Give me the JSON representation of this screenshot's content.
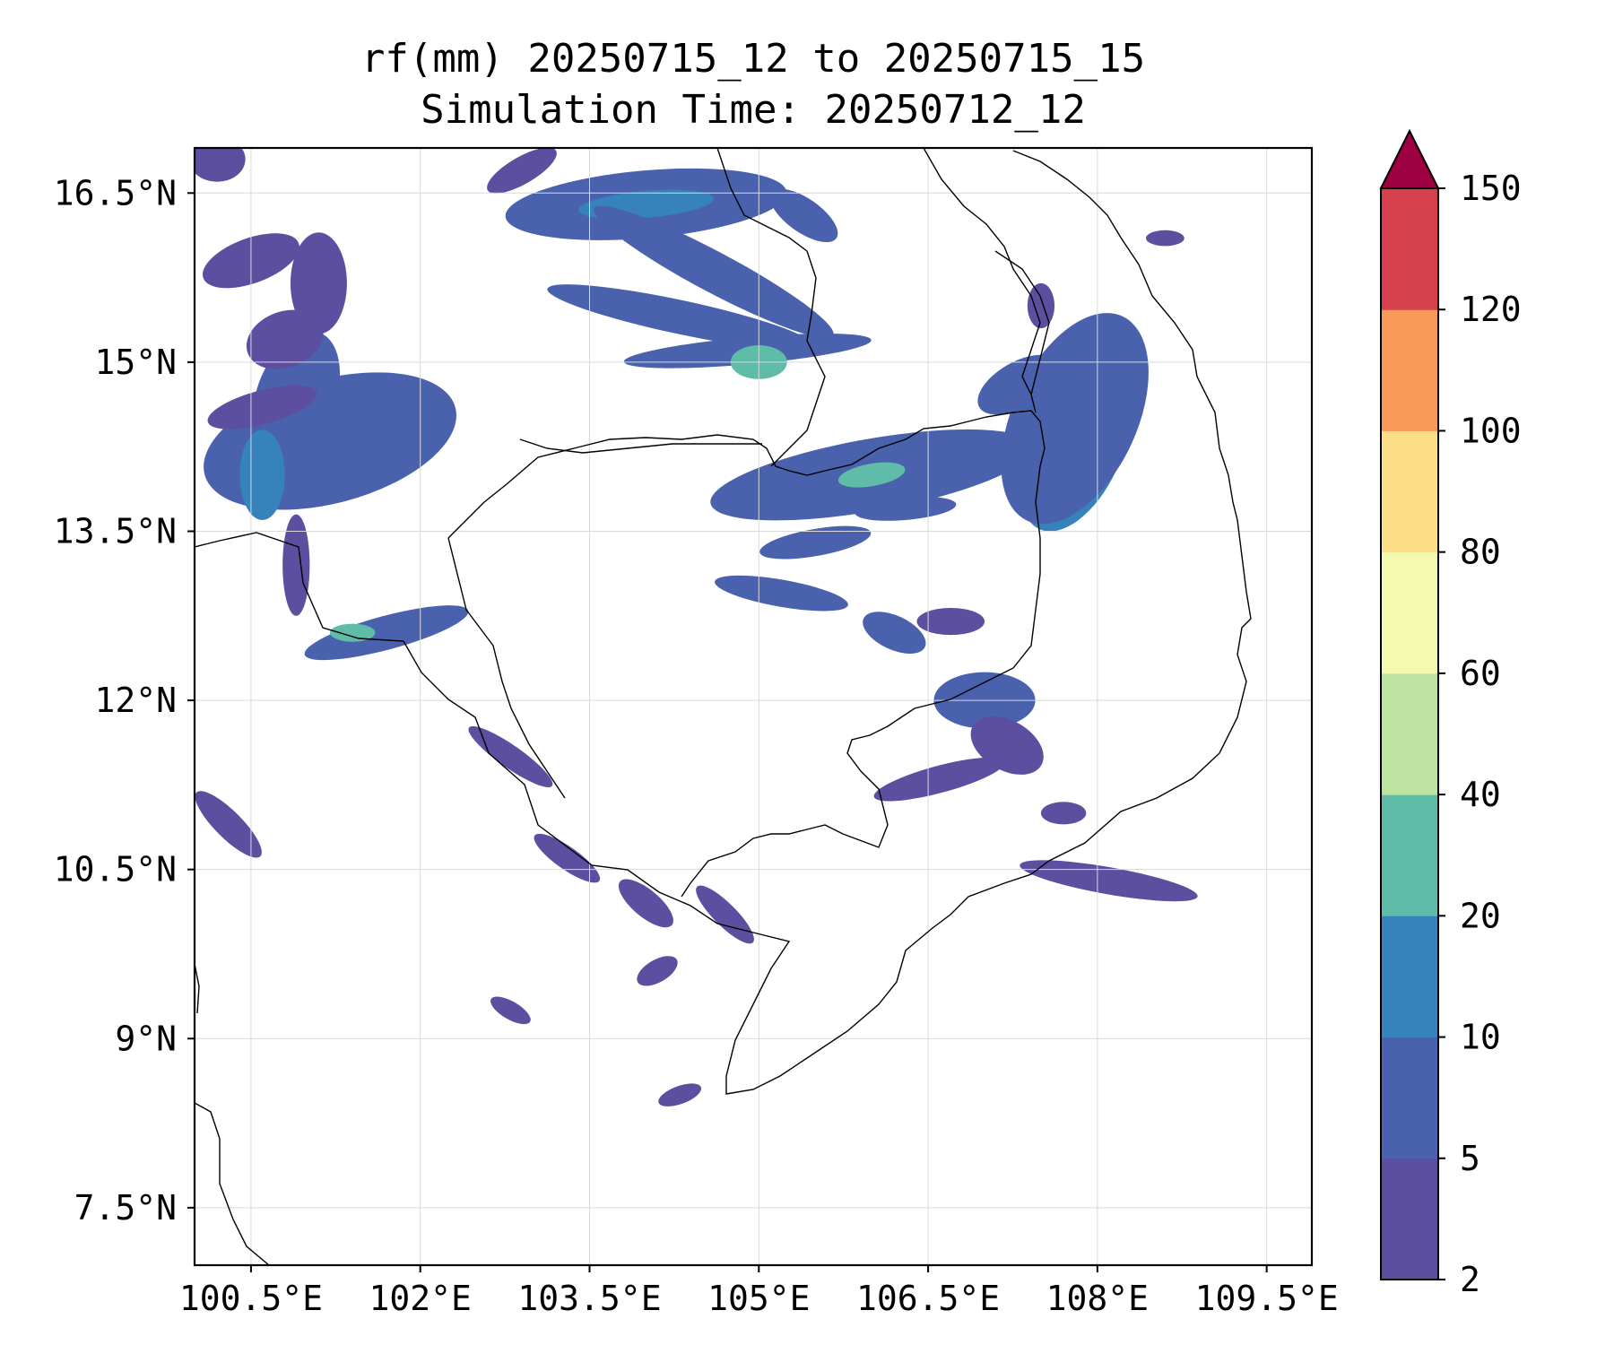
{
  "title": {
    "line1": "rf(mm) 20250715_12 to 20250715_15",
    "line2": "Simulation Time: 20250712_12"
  },
  "map": {
    "lon_range": [
      100.0,
      109.9
    ],
    "lat_range": [
      6.99,
      16.9
    ],
    "x_ticks": [
      {
        "value": 100.5,
        "label": "100.5°E"
      },
      {
        "value": 102.0,
        "label": "102°E"
      },
      {
        "value": 103.5,
        "label": "103.5°E"
      },
      {
        "value": 105.0,
        "label": "105°E"
      },
      {
        "value": 106.5,
        "label": "106.5°E"
      },
      {
        "value": 108.0,
        "label": "108°E"
      },
      {
        "value": 109.5,
        "label": "109.5°E"
      }
    ],
    "y_ticks": [
      {
        "value": 16.5,
        "label": "16.5°N"
      },
      {
        "value": 15.0,
        "label": "15°N"
      },
      {
        "value": 13.5,
        "label": "13.5°N"
      },
      {
        "value": 12.0,
        "label": "12°N"
      },
      {
        "value": 10.5,
        "label": "10.5°N"
      },
      {
        "value": 9.0,
        "label": "9°N"
      },
      {
        "value": 7.5,
        "label": "7.5°N"
      }
    ],
    "grid": true
  },
  "colorbar": {
    "levels": [
      "2",
      "5",
      "10",
      "20",
      "40",
      "60",
      "80",
      "100",
      "120",
      "150"
    ],
    "colors": [
      "#5c4fa0",
      "#4a62ad",
      "#3682ba",
      "#5fbca8",
      "#bde3a1",
      "#f3f9ae",
      "#fcde87",
      "#fa9a58",
      "#d63f4c"
    ],
    "extend_color": "#9e0142"
  },
  "rain_cells": [
    {
      "lon": 101.3,
      "lat": 14.35,
      "rx": 0.8,
      "ry": 0.3,
      "rot": -15,
      "level": 3
    },
    {
      "lon": 101.2,
      "lat": 14.3,
      "rx": 1.15,
      "ry": 0.55,
      "rot": -15,
      "level": 1
    },
    {
      "lon": 100.9,
      "lat": 14.7,
      "rx": 0.35,
      "ry": 0.6,
      "rot": 20,
      "level": 1
    },
    {
      "lon": 100.6,
      "lat": 14.0,
      "rx": 0.2,
      "ry": 0.4,
      "rot": 0,
      "level": 2
    },
    {
      "lon": 100.8,
      "lat": 15.2,
      "rx": 0.35,
      "ry": 0.25,
      "rot": -20,
      "level": 0
    },
    {
      "lon": 101.1,
      "lat": 15.7,
      "rx": 0.25,
      "ry": 0.45,
      "rot": 0,
      "level": 0
    },
    {
      "lon": 100.5,
      "lat": 15.9,
      "rx": 0.45,
      "ry": 0.2,
      "rot": -20,
      "level": 0
    },
    {
      "lon": 100.6,
      "lat": 14.6,
      "rx": 0.5,
      "ry": 0.15,
      "rot": -15,
      "level": 0
    },
    {
      "lon": 100.2,
      "lat": 16.8,
      "rx": 0.25,
      "ry": 0.2,
      "rot": 0,
      "level": 0
    },
    {
      "lon": 104.0,
      "lat": 16.4,
      "rx": 1.25,
      "ry": 0.3,
      "rot": -5,
      "level": 1
    },
    {
      "lon": 104.0,
      "lat": 16.4,
      "rx": 0.6,
      "ry": 0.12,
      "rot": -5,
      "level": 2
    },
    {
      "lon": 102.9,
      "lat": 16.7,
      "rx": 0.35,
      "ry": 0.12,
      "rot": -30,
      "level": 0
    },
    {
      "lon": 104.6,
      "lat": 15.8,
      "rx": 1.2,
      "ry": 0.18,
      "rot": 28,
      "level": 1
    },
    {
      "lon": 104.3,
      "lat": 15.4,
      "rx": 1.2,
      "ry": 0.15,
      "rot": 12,
      "level": 1
    },
    {
      "lon": 104.9,
      "lat": 15.1,
      "rx": 1.1,
      "ry": 0.12,
      "rot": -5,
      "level": 1
    },
    {
      "lon": 105.0,
      "lat": 15.0,
      "rx": 0.25,
      "ry": 0.15,
      "rot": 0,
      "level": 3
    },
    {
      "lon": 105.4,
      "lat": 16.3,
      "rx": 0.35,
      "ry": 0.15,
      "rot": 35,
      "level": 1
    },
    {
      "lon": 106.0,
      "lat": 14.0,
      "rx": 1.45,
      "ry": 0.32,
      "rot": -10,
      "level": 1
    },
    {
      "lon": 106.0,
      "lat": 14.0,
      "rx": 0.3,
      "ry": 0.1,
      "rot": -10,
      "level": 3
    },
    {
      "lon": 107.8,
      "lat": 14.2,
      "rx": 0.4,
      "ry": 0.75,
      "rot": 25,
      "level": 2
    },
    {
      "lon": 107.8,
      "lat": 14.5,
      "rx": 0.55,
      "ry": 1.0,
      "rot": 25,
      "level": 1
    },
    {
      "lon": 107.3,
      "lat": 14.8,
      "rx": 0.4,
      "ry": 0.2,
      "rot": -30,
      "level": 1
    },
    {
      "lon": 106.3,
      "lat": 13.7,
      "rx": 0.45,
      "ry": 0.1,
      "rot": -5,
      "level": 1
    },
    {
      "lon": 105.5,
      "lat": 13.4,
      "rx": 0.5,
      "ry": 0.12,
      "rot": -10,
      "level": 1
    },
    {
      "lon": 105.2,
      "lat": 12.95,
      "rx": 0.6,
      "ry": 0.12,
      "rot": 10,
      "level": 1
    },
    {
      "lon": 106.2,
      "lat": 12.6,
      "rx": 0.3,
      "ry": 0.15,
      "rot": 25,
      "level": 1
    },
    {
      "lon": 107.0,
      "lat": 12.0,
      "rx": 0.45,
      "ry": 0.25,
      "rot": 0,
      "level": 1
    },
    {
      "lon": 107.2,
      "lat": 11.6,
      "rx": 0.35,
      "ry": 0.22,
      "rot": 30,
      "level": 0
    },
    {
      "lon": 106.6,
      "lat": 11.3,
      "rx": 0.6,
      "ry": 0.12,
      "rot": -15,
      "level": 0
    },
    {
      "lon": 107.7,
      "lat": 11.0,
      "rx": 0.2,
      "ry": 0.1,
      "rot": 0,
      "level": 0
    },
    {
      "lon": 108.1,
      "lat": 10.4,
      "rx": 0.8,
      "ry": 0.12,
      "rot": 10,
      "level": 0
    },
    {
      "lon": 101.7,
      "lat": 12.6,
      "rx": 0.75,
      "ry": 0.15,
      "rot": -15,
      "level": 1
    },
    {
      "lon": 101.4,
      "lat": 12.6,
      "rx": 0.2,
      "ry": 0.08,
      "rot": 0,
      "level": 3
    },
    {
      "lon": 100.9,
      "lat": 13.2,
      "rx": 0.12,
      "ry": 0.45,
      "rot": 0,
      "level": 0
    },
    {
      "lon": 102.8,
      "lat": 11.5,
      "rx": 0.45,
      "ry": 0.1,
      "rot": 35,
      "level": 0
    },
    {
      "lon": 103.3,
      "lat": 10.6,
      "rx": 0.35,
      "ry": 0.1,
      "rot": 35,
      "level": 0
    },
    {
      "lon": 104.0,
      "lat": 10.2,
      "rx": 0.3,
      "ry": 0.12,
      "rot": 40,
      "level": 0
    },
    {
      "lon": 104.7,
      "lat": 10.1,
      "rx": 0.35,
      "ry": 0.1,
      "rot": 45,
      "level": 0
    },
    {
      "lon": 104.1,
      "lat": 9.6,
      "rx": 0.2,
      "ry": 0.1,
      "rot": -30,
      "level": 0
    },
    {
      "lon": 102.8,
      "lat": 9.25,
      "rx": 0.2,
      "ry": 0.08,
      "rot": 30,
      "level": 0
    },
    {
      "lon": 104.3,
      "lat": 8.5,
      "rx": 0.2,
      "ry": 0.08,
      "rot": -20,
      "level": 0
    },
    {
      "lon": 100.3,
      "lat": 10.9,
      "rx": 0.4,
      "ry": 0.12,
      "rot": 45,
      "level": 0
    },
    {
      "lon": 108.6,
      "lat": 16.1,
      "rx": 0.17,
      "ry": 0.07,
      "rot": 0,
      "level": 0
    },
    {
      "lon": 106.7,
      "lat": 12.7,
      "rx": 0.3,
      "ry": 0.12,
      "rot": 0,
      "level": 0
    },
    {
      "lon": 107.5,
      "lat": 15.5,
      "rx": 0.12,
      "ry": 0.2,
      "rot": 0,
      "level": 0
    }
  ]
}
